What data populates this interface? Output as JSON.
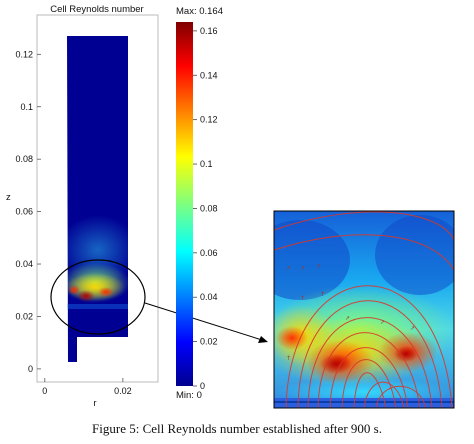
{
  "caption": "Figure 5: Cell Reynolds number established after 900 s.",
  "chart_data": {
    "type": "heatmap",
    "title": "Cell Reynolds number",
    "xlabel": "r",
    "ylabel": "z",
    "x_ticks": [
      "0",
      "0.02"
    ],
    "y_ticks": [
      "0",
      "0.02",
      "0.04",
      "0.06",
      "0.08",
      "0.1",
      "0.12"
    ],
    "xlim": [
      -0.002,
      0.029
    ],
    "ylim": [
      -0.005,
      0.135
    ],
    "colorbar": {
      "max_label": "Max: 0.164",
      "min_label": "Min: 0",
      "ticks": [
        "0.16",
        "0.14",
        "0.12",
        "0.1",
        "0.08",
        "0.06",
        "0.04",
        "0.02",
        "0"
      ],
      "max": 0.164,
      "min": 0,
      "colormap": "jet"
    },
    "highlight_region": {
      "r": [
        0.0,
        0.022
      ],
      "z": [
        0.018,
        0.038
      ]
    }
  }
}
